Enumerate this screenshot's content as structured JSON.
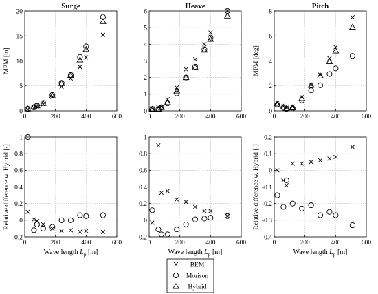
{
  "chart_data": [
    {
      "type": "scatter",
      "title": "Surge",
      "ylabel": "MPM [m]",
      "xlabel": "",
      "xlim": [
        0,
        600
      ],
      "ylim": [
        0,
        20
      ],
      "xticks": [
        0,
        200,
        400,
        600
      ],
      "yticks": [
        0,
        5,
        10,
        15,
        20
      ],
      "xticklabels": [
        "0",
        "200",
        "400",
        "600"
      ],
      "yticklabels": [
        "0",
        "5",
        "10",
        "15",
        "20"
      ],
      "grid": true,
      "series": [
        {
          "name": "BEM",
          "marker": "x",
          "x": [
            20,
            60,
            80,
            120,
            180,
            240,
            300,
            360,
            400,
            510
          ],
          "y": [
            0.3,
            0.6,
            0.9,
            1.3,
            2.8,
            4.8,
            6.5,
            8.8,
            10.7,
            15.2
          ]
        },
        {
          "name": "Morison",
          "marker": "o",
          "x": [
            20,
            60,
            80,
            120,
            180,
            240,
            300,
            360,
            400,
            510
          ],
          "y": [
            0.4,
            0.7,
            1.1,
            1.6,
            3.2,
            5.6,
            7.2,
            10.8,
            12.9,
            18.8
          ]
        },
        {
          "name": "Hybrid",
          "marker": "^",
          "x": [
            20,
            60,
            80,
            120,
            180,
            240,
            300,
            360,
            400,
            510
          ],
          "y": [
            0.4,
            0.8,
            1.0,
            1.5,
            3.0,
            5.5,
            7.1,
            10.2,
            12.3,
            17.9
          ]
        }
      ]
    },
    {
      "type": "scatter",
      "title": "Heave",
      "ylabel": "",
      "xlabel": "",
      "xlim": [
        0,
        600
      ],
      "ylim": [
        0,
        6
      ],
      "xticks": [
        0,
        200,
        400,
        600
      ],
      "yticks": [
        0,
        1,
        2,
        3,
        4,
        5,
        6
      ],
      "xticklabels": [
        "0",
        "200",
        "400",
        "600"
      ],
      "yticklabels": [
        "0",
        "1",
        "2",
        "3",
        "4",
        "5",
        "6"
      ],
      "grid": true,
      "series": [
        {
          "name": "BEM",
          "marker": "x",
          "x": [
            20,
            60,
            80,
            120,
            180,
            240,
            300,
            360,
            400,
            510
          ],
          "y": [
            0.15,
            0.2,
            0.25,
            0.7,
            1.4,
            2.5,
            3.1,
            4.0,
            4.7,
            6.0
          ]
        },
        {
          "name": "Morison",
          "marker": "o",
          "x": [
            20,
            60,
            80,
            120,
            180,
            240,
            300,
            360,
            400,
            510
          ],
          "y": [
            0.1,
            0.1,
            0.2,
            0.45,
            1.05,
            2.0,
            2.65,
            3.7,
            4.4,
            6.0
          ]
        },
        {
          "name": "Hybrid",
          "marker": "^",
          "x": [
            20,
            60,
            80,
            120,
            180,
            240,
            300,
            360,
            400,
            510
          ],
          "y": [
            0.1,
            0.1,
            0.2,
            0.5,
            1.2,
            2.0,
            2.6,
            3.65,
            4.3,
            5.7
          ]
        }
      ]
    },
    {
      "type": "scatter",
      "title": "Pitch",
      "ylabel": "MPM [deg]",
      "xlabel": "",
      "xlim": [
        0,
        600
      ],
      "ylim": [
        0,
        8
      ],
      "xticks": [
        0,
        200,
        400,
        600
      ],
      "yticks": [
        0,
        2,
        4,
        6,
        8
      ],
      "xticklabels": [
        "0",
        "200",
        "400",
        "600"
      ],
      "yticklabels": [
        "0",
        "2",
        "4",
        "6",
        "8"
      ],
      "grid": true,
      "series": [
        {
          "name": "BEM",
          "marker": "x",
          "x": [
            20,
            60,
            80,
            120,
            180,
            240,
            300,
            360,
            400,
            510
          ],
          "y": [
            0.65,
            0.35,
            0.25,
            0.35,
            1.1,
            2.1,
            2.9,
            4.2,
            5.1,
            7.5
          ]
        },
        {
          "name": "Morison",
          "marker": "o",
          "x": [
            20,
            60,
            80,
            120,
            180,
            240,
            300,
            360,
            400,
            510
          ],
          "y": [
            0.5,
            0.25,
            0.15,
            0.2,
            0.85,
            1.65,
            2.05,
            2.95,
            3.4,
            4.4
          ]
        },
        {
          "name": "Hybrid",
          "marker": "^",
          "x": [
            20,
            60,
            80,
            120,
            180,
            240,
            300,
            360,
            400,
            510
          ],
          "y": [
            0.55,
            0.3,
            0.2,
            0.25,
            1.0,
            2.05,
            2.8,
            3.95,
            4.8,
            6.7
          ]
        }
      ]
    },
    {
      "type": "scatter",
      "title": "",
      "ylabel": "Relative difference w. Hybrid [-]",
      "xlabel": "Wave length",
      "xlabel_symbol": "L",
      "xlabel_subscript": "p",
      "xlabel_unit": "[m]",
      "xlim": [
        0,
        600
      ],
      "ylim": [
        -0.2,
        1
      ],
      "xticks": [
        0,
        200,
        400,
        600
      ],
      "yticks": [
        -0.2,
        0,
        0.2,
        0.4,
        0.6,
        0.8,
        1
      ],
      "xticklabels": [
        "0",
        "200",
        "400",
        "600"
      ],
      "yticklabels": [
        "-0.2",
        "0",
        "0.2",
        "0.4",
        "0.6",
        "0.8",
        "1"
      ],
      "grid": true,
      "series": [
        {
          "name": "BEM",
          "marker": "x",
          "x": [
            20,
            60,
            80,
            120,
            180,
            240,
            300,
            360,
            400,
            510
          ],
          "y": [
            0.1,
            0.01,
            -0.01,
            -0.05,
            -0.1,
            -0.13,
            -0.12,
            -0.14,
            -0.13,
            -0.14
          ]
        },
        {
          "name": "Morison",
          "marker": "o",
          "x": [
            20,
            60,
            80,
            120,
            180,
            240,
            300,
            360,
            400,
            510
          ],
          "y": [
            1.0,
            -0.12,
            -0.05,
            -0.1,
            -0.08,
            0.0,
            0.0,
            0.06,
            0.05,
            0.06
          ]
        }
      ]
    },
    {
      "type": "scatter",
      "title": "",
      "ylabel": "",
      "xlabel": "Wave length",
      "xlabel_symbol": "L",
      "xlabel_subscript": "p",
      "xlabel_unit": "[m]",
      "xlim": [
        0,
        600
      ],
      "ylim": [
        -0.2,
        1
      ],
      "xticks": [
        0,
        200,
        400,
        600
      ],
      "yticks": [
        -0.2,
        0,
        0.2,
        0.4,
        0.6,
        0.8,
        1
      ],
      "xticklabels": [
        "0",
        "200",
        "400",
        "600"
      ],
      "yticklabels": [
        "-0.2",
        "0",
        "0.2",
        "0.4",
        "0.6",
        "0.8",
        "1"
      ],
      "grid": true,
      "series": [
        {
          "name": "BEM",
          "marker": "x",
          "x": [
            20,
            60,
            80,
            120,
            180,
            240,
            300,
            360,
            400,
            510
          ],
          "y": [
            -0.03,
            0.9,
            0.33,
            0.35,
            0.25,
            0.22,
            0.16,
            0.11,
            0.11,
            0.05
          ]
        },
        {
          "name": "Morison",
          "marker": "o",
          "x": [
            20,
            60,
            80,
            120,
            180,
            240,
            300,
            360,
            400,
            510
          ],
          "y": [
            0.12,
            -0.11,
            -0.17,
            -0.17,
            -0.11,
            -0.05,
            0.01,
            0.02,
            0.03,
            0.05
          ]
        }
      ]
    },
    {
      "type": "scatter",
      "title": "",
      "ylabel": "Relative difference w. Hybrid [-]",
      "xlabel": "Wave length",
      "xlabel_symbol": "L",
      "xlabel_subscript": "p",
      "xlabel_unit": "[m]",
      "xlim": [
        0,
        600
      ],
      "ylim": [
        -0.4,
        0.2
      ],
      "xticks": [
        0,
        200,
        400,
        600
      ],
      "yticks": [
        -0.4,
        -0.3,
        -0.2,
        -0.1,
        0,
        0.1,
        0.2
      ],
      "xticklabels": [
        "0",
        "200",
        "400",
        "600"
      ],
      "yticklabels": [
        "-0.4",
        "-0.3",
        "-0.2",
        "-0.1",
        "0",
        "0.1",
        "0.2"
      ],
      "grid": true,
      "series": [
        {
          "name": "BEM",
          "marker": "x",
          "x": [
            20,
            60,
            80,
            120,
            180,
            240,
            300,
            360,
            400,
            510
          ],
          "y": [
            0.0,
            -0.06,
            -0.09,
            0.04,
            0.04,
            0.05,
            0.06,
            0.07,
            0.08,
            0.14
          ]
        },
        {
          "name": "Morison",
          "marker": "o",
          "x": [
            20,
            60,
            80,
            120,
            180,
            240,
            300,
            360,
            400,
            510
          ],
          "y": [
            -0.15,
            -0.22,
            -0.06,
            -0.2,
            -0.23,
            -0.21,
            -0.27,
            -0.25,
            -0.27,
            -0.33
          ]
        }
      ]
    }
  ],
  "legend": {
    "placement": "bottom-center",
    "entries": [
      {
        "marker": "x",
        "label": "BEM"
      },
      {
        "marker": "o",
        "label": "Morison"
      },
      {
        "marker": "^",
        "label": "Hybrid"
      }
    ]
  }
}
